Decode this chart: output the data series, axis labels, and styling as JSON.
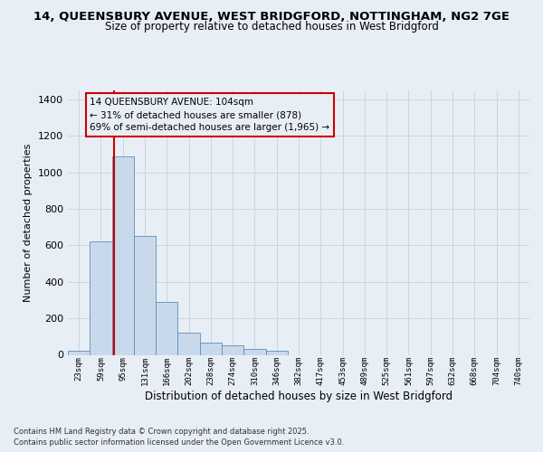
{
  "title_line1": "14, QUEENSBURY AVENUE, WEST BRIDGFORD, NOTTINGHAM, NG2 7GE",
  "title_line2": "Size of property relative to detached houses in West Bridgford",
  "xlabel": "Distribution of detached houses by size in West Bridgford",
  "ylabel": "Number of detached properties",
  "categories": [
    "23sqm",
    "59sqm",
    "95sqm",
    "131sqm",
    "166sqm",
    "202sqm",
    "238sqm",
    "274sqm",
    "310sqm",
    "346sqm",
    "382sqm",
    "417sqm",
    "453sqm",
    "489sqm",
    "525sqm",
    "561sqm",
    "597sqm",
    "632sqm",
    "668sqm",
    "704sqm",
    "740sqm"
  ],
  "values": [
    20,
    620,
    1090,
    650,
    290,
    120,
    65,
    50,
    30,
    20,
    0,
    0,
    0,
    0,
    0,
    0,
    0,
    0,
    0,
    0,
    0
  ],
  "bar_color": "#c9d9ec",
  "bar_edge_color": "#5b8db8",
  "grid_color": "#cdd5e0",
  "background_color": "#e8eef5",
  "vline_color": "#cc0000",
  "vline_pos": 1.58,
  "annotation_text": "14 QUEENSBURY AVENUE: 104sqm\n← 31% of detached houses are smaller (878)\n69% of semi-detached houses are larger (1,965) →",
  "annotation_box_color": "#cc0000",
  "ylim": [
    0,
    1450
  ],
  "yticks": [
    0,
    200,
    400,
    600,
    800,
    1000,
    1200,
    1400
  ],
  "footer_line1": "Contains HM Land Registry data © Crown copyright and database right 2025.",
  "footer_line2": "Contains public sector information licensed under the Open Government Licence v3.0."
}
